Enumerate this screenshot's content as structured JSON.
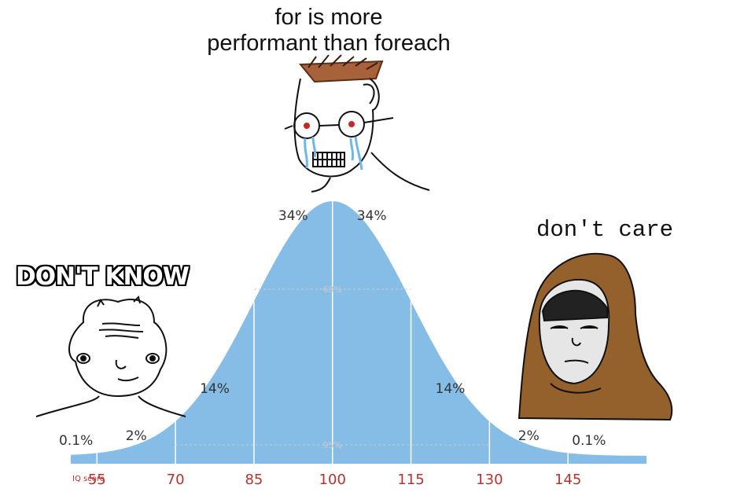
{
  "captions": {
    "top_lines": [
      "for is more",
      "performant than foreach"
    ],
    "left": "DON'T KNOW",
    "right": "don't care"
  },
  "chart_data": {
    "type": "area",
    "xlabel": "IQ score",
    "x_ticks": [
      55,
      70,
      85,
      100,
      115,
      130,
      145
    ],
    "xlim": [
      50,
      160
    ],
    "curve": {
      "mean": 100,
      "sd": 15
    },
    "band_labels": [
      {
        "text": "0.1%",
        "x": 51
      },
      {
        "text": "2%",
        "x": 62.5
      },
      {
        "text": "14%",
        "x": 77.5
      },
      {
        "text": "34%",
        "x": 92.5
      },
      {
        "text": "34%",
        "x": 107.5
      },
      {
        "text": "14%",
        "x": 122.5
      },
      {
        "text": "2%",
        "x": 137.5
      },
      {
        "text": "0.1%",
        "x": 149
      }
    ],
    "inner_labels": [
      "68%",
      "95%"
    ],
    "colors": {
      "fill": "#85bde6",
      "divider": "#ffffff",
      "tick_label": "#b5332e",
      "label": "#333333"
    }
  },
  "characters": [
    {
      "name": "crying-wojak-icon"
    },
    {
      "name": "bald-wojak-icon"
    },
    {
      "name": "hooded-figure-icon"
    }
  ]
}
